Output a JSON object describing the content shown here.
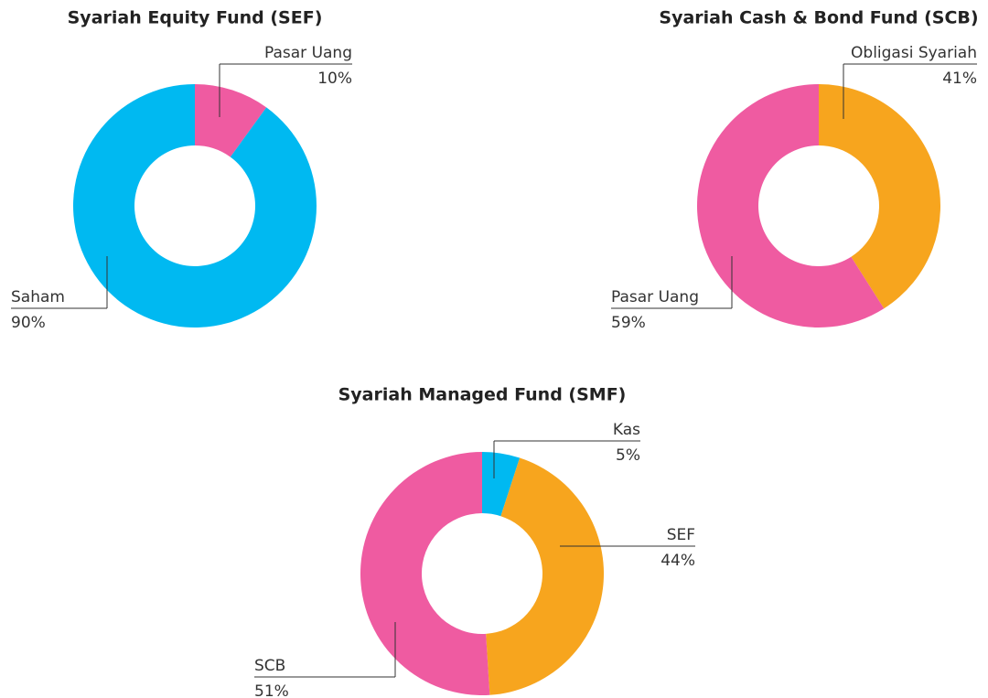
{
  "chart_data": [
    {
      "type": "pie",
      "title": "Syariah Equity Fund (SEF)",
      "donut": true,
      "categories": [
        "Pasar Uang",
        "Saham"
      ],
      "values": [
        10,
        90
      ],
      "value_labels": [
        "10%",
        "90%"
      ],
      "colors": [
        "#ef5ba1",
        "#00b9f1"
      ]
    },
    {
      "type": "pie",
      "title": "Syariah Cash & Bond Fund (SCB)",
      "donut": true,
      "categories": [
        "Obligasi Syariah",
        "Pasar Uang"
      ],
      "values": [
        41,
        59
      ],
      "value_labels": [
        "41%",
        "59%"
      ],
      "colors": [
        "#f7a51e",
        "#ef5ba1"
      ]
    },
    {
      "type": "pie",
      "title": "Syariah Managed Fund (SMF)",
      "donut": true,
      "categories": [
        "Kas",
        "SEF",
        "SCB"
      ],
      "values": [
        5,
        44,
        51
      ],
      "value_labels": [
        "5%",
        "44%",
        "51%"
      ],
      "colors": [
        "#00b9f1",
        "#f7a51e",
        "#ef5ba1"
      ]
    }
  ]
}
